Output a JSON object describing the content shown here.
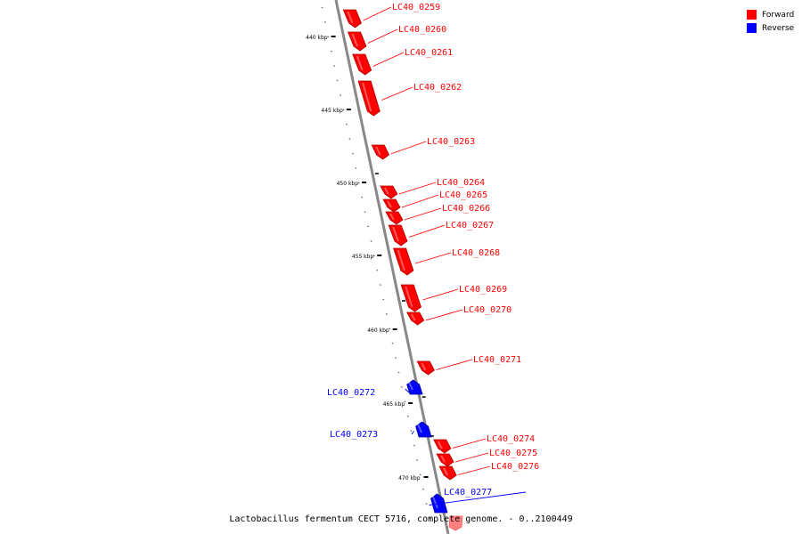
{
  "colors": {
    "forward": "#ff0000",
    "reverse": "#0000ff",
    "backbone": "#888888"
  },
  "legend": [
    {
      "label": "Forward",
      "color": "#ff0000"
    },
    {
      "label": "Reverse",
      "color": "#0000ff"
    }
  ],
  "ruler_labels": [
    "440 kbp",
    "445 kbp",
    "450 kbp",
    "455 kbp",
    "460 kbp",
    "465 kbp",
    "470 kbp"
  ],
  "genes": [
    {
      "name": "LC40_0259",
      "strand": "forward"
    },
    {
      "name": "LC40_0260",
      "strand": "forward"
    },
    {
      "name": "LC40_0261",
      "strand": "forward"
    },
    {
      "name": "LC40_0262",
      "strand": "forward"
    },
    {
      "name": "LC40_0263",
      "strand": "forward"
    },
    {
      "name": "LC40_0264",
      "strand": "forward"
    },
    {
      "name": "LC40_0265",
      "strand": "forward"
    },
    {
      "name": "LC40_0266",
      "strand": "forward"
    },
    {
      "name": "LC40_0267",
      "strand": "forward"
    },
    {
      "name": "LC40_0268",
      "strand": "forward"
    },
    {
      "name": "LC40_0269",
      "strand": "forward"
    },
    {
      "name": "LC40_0270",
      "strand": "forward"
    },
    {
      "name": "LC40_0271",
      "strand": "forward"
    },
    {
      "name": "LC40_0272",
      "strand": "reverse"
    },
    {
      "name": "LC40_0273",
      "strand": "reverse"
    },
    {
      "name": "LC40_0274",
      "strand": "forward"
    },
    {
      "name": "LC40_0275",
      "strand": "forward"
    },
    {
      "name": "LC40_0276",
      "strand": "forward"
    },
    {
      "name": "LC40_0277",
      "strand": "reverse"
    }
  ],
  "footer": {
    "title": "Lactobacillus fermentum CECT 5716, complete genome. - 0..2100449"
  }
}
